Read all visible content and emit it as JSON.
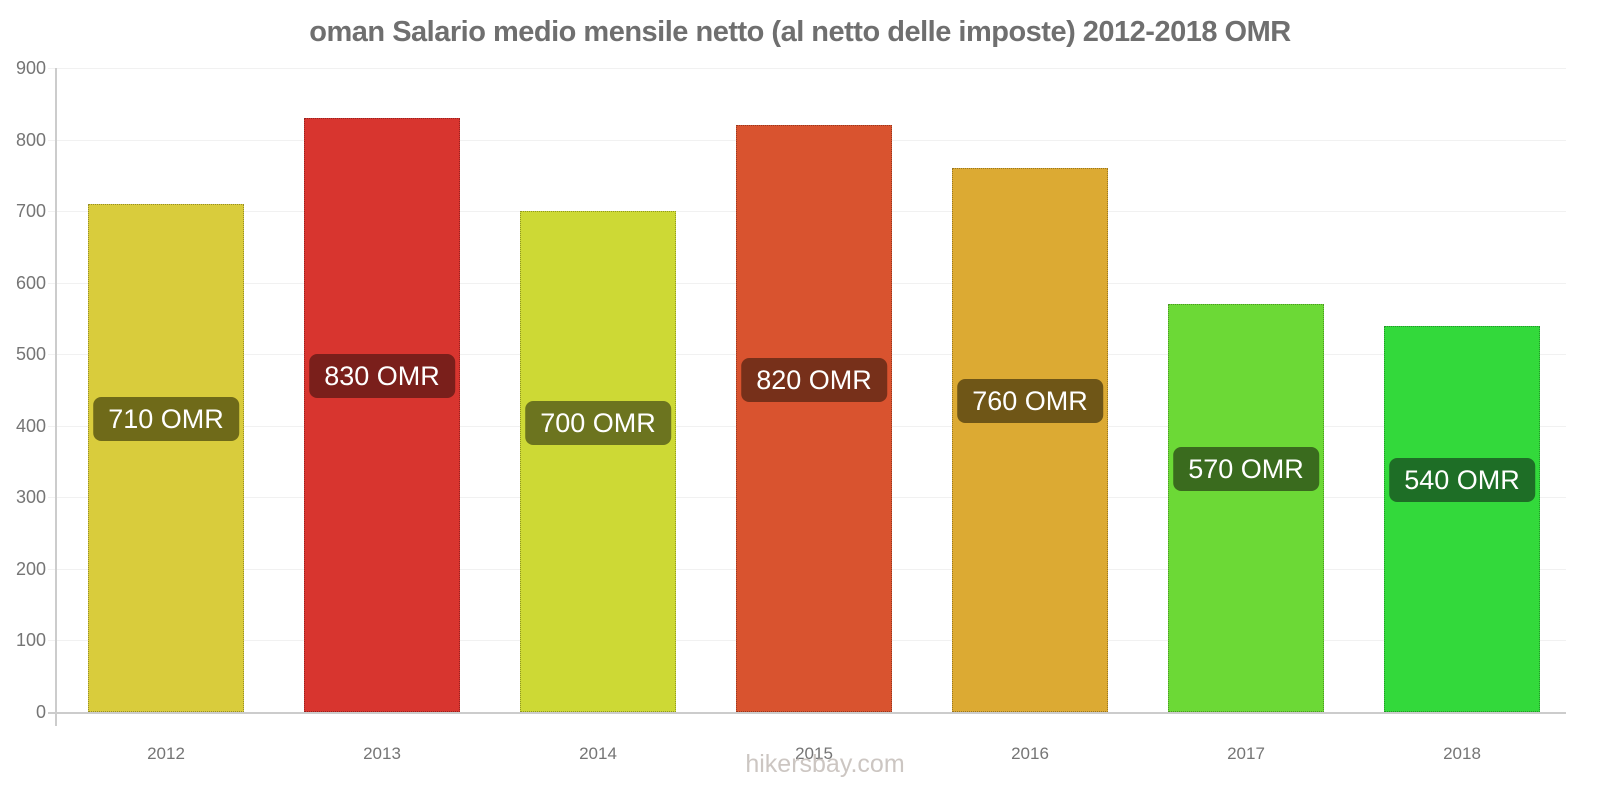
{
  "title": "oman Salario medio mensile netto (al netto delle imposte) 2012-2018 OMR",
  "footer": "hikersbay.com",
  "chart_data": {
    "type": "bar",
    "title": "oman Salario medio mensile netto (al netto delle imposte) 2012-2018 OMR",
    "categories": [
      "2012",
      "2013",
      "2014",
      "2015",
      "2016",
      "2017",
      "2018"
    ],
    "values": [
      710,
      830,
      700,
      820,
      760,
      570,
      540
    ],
    "value_labels": [
      "710 OMR",
      "830 OMR",
      "700 OMR",
      "820 OMR",
      "760 OMR",
      "570 OMR",
      "540 OMR"
    ],
    "bar_colors": [
      "#d9cc3c",
      "#d8352f",
      "#cdd935",
      "#d9532f",
      "#dcaa33",
      "#6cd936",
      "#33d93b"
    ],
    "label_bg_colors": [
      "#6f6a19",
      "#7a1f1b",
      "#6c741f",
      "#77301a",
      "#6f5617",
      "#3a6b1e",
      "#1e6e26"
    ],
    "xlabel": "",
    "ylabel": "",
    "ylim": [
      0,
      900
    ],
    "yticks": [
      0,
      100,
      200,
      300,
      400,
      500,
      600,
      700,
      800,
      900
    ],
    "grid": "horizontal-faint",
    "legend": "none",
    "unit": "OMR",
    "axis_color": "#cccccc",
    "tick_label_color": "#757575"
  }
}
